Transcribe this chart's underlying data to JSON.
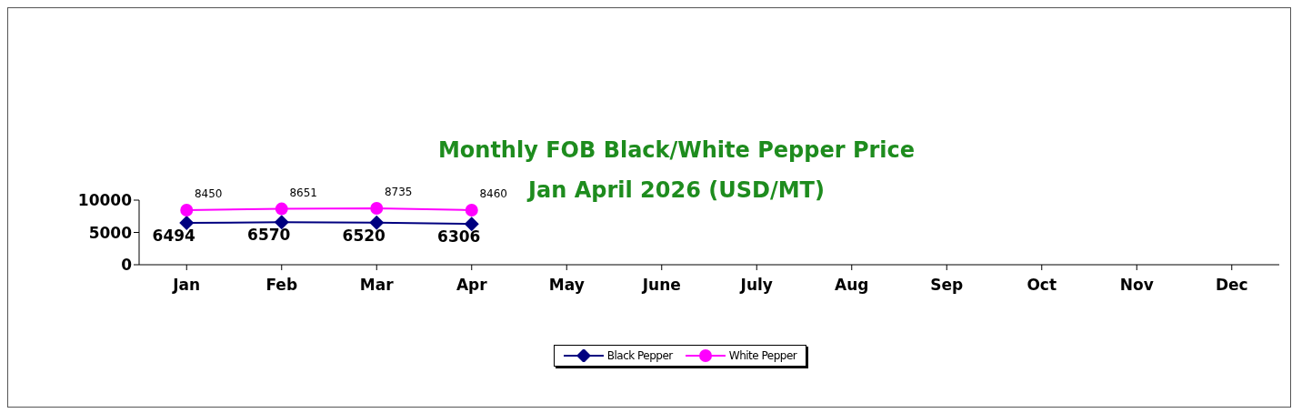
{
  "chart_data": {
    "type": "line",
    "title": "Monthly FOB Black/White Pepper Price",
    "subtitle": "Jan April 2026 (USD/MT)",
    "categories": [
      "Jan",
      "Feb",
      "Mar",
      "Apr",
      "May",
      "June",
      "July",
      "Aug",
      "Sep",
      "Oct",
      "Nov",
      "Dec"
    ],
    "series": [
      {
        "name": "Black Pepper",
        "color": "#000080",
        "marker": "diamond",
        "values": [
          6494,
          6570,
          6520,
          6306,
          null,
          null,
          null,
          null,
          null,
          null,
          null,
          null
        ]
      },
      {
        "name": "White Pepper",
        "color": "#ff00ff",
        "marker": "circle",
        "values": [
          8450,
          8651,
          8735,
          8460,
          null,
          null,
          null,
          null,
          null,
          null,
          null,
          null
        ]
      }
    ],
    "ylim": [
      0,
      10000
    ],
    "yticks": [
      0,
      5000,
      10000
    ],
    "grid": false,
    "legend": "bottom",
    "data_labels": true
  }
}
